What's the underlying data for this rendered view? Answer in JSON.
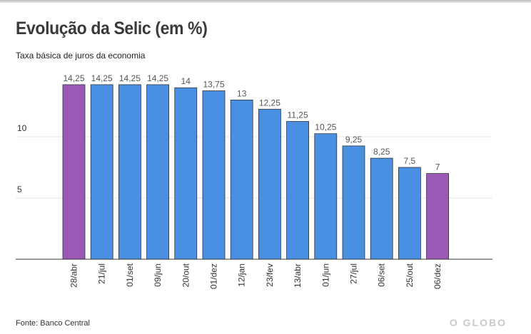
{
  "chart_data": {
    "type": "bar",
    "title": "Evolução da Selic (em %)",
    "subtitle": "Taxa básica de juros da economia",
    "xlabel": "",
    "ylabel": "",
    "ylim": [
      0,
      15
    ],
    "yticks": [
      5,
      10
    ],
    "grid": true,
    "categories": [
      "28/abr",
      "21/jul",
      "01/set",
      "09/jun",
      "20/out",
      "01/dez",
      "12/jan",
      "23/fev",
      "13/abr",
      "01/jun",
      "27/jul",
      "06/set",
      "25/out",
      "06/dez"
    ],
    "values": [
      14.25,
      14.25,
      14.25,
      14.25,
      14,
      13.75,
      13,
      12.25,
      11.25,
      10.25,
      9.25,
      8.25,
      7.5,
      7
    ],
    "value_labels": [
      "14,25",
      "14,25",
      "14,25",
      "14,25",
      "14",
      "13,75",
      "13",
      "12,25",
      "11,25",
      "10,25",
      "9,25",
      "8,25",
      "7,5",
      "7"
    ],
    "highlighted": [
      0,
      13
    ],
    "colors": {
      "bar": "#4a90e2",
      "bar_highlight": "#9b59b6",
      "bar_stroke": "#333333",
      "grid": "#e4e4e4",
      "axis": "#333333"
    }
  },
  "footer": {
    "source": "Fonte: Banco Central",
    "brand": "O GLOBO"
  }
}
